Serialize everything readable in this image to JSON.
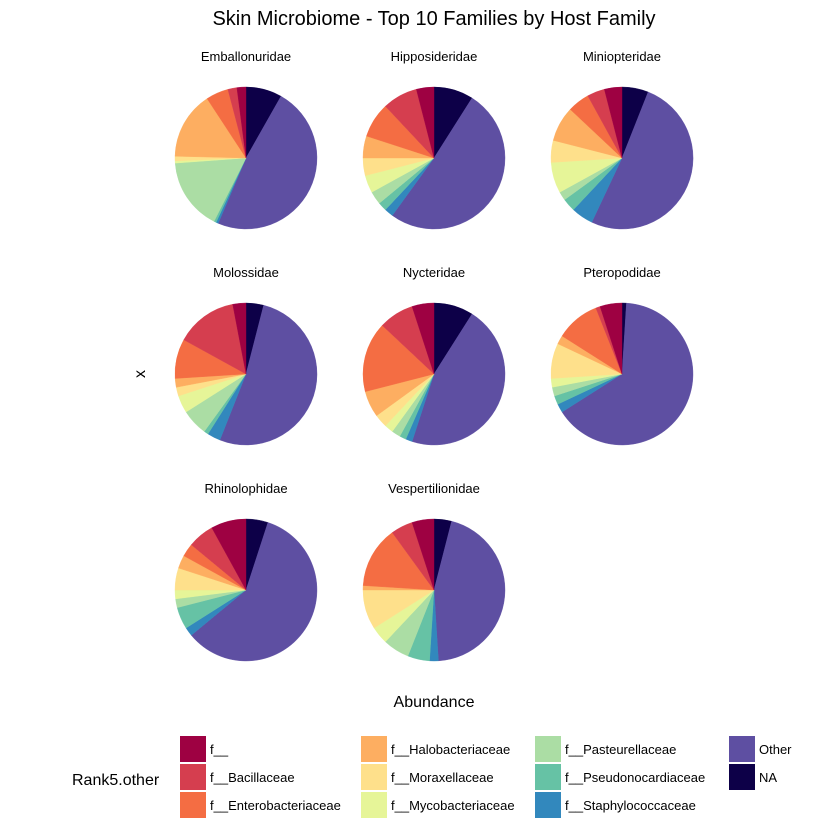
{
  "chart_data": {
    "type": "pie",
    "title": "Skin Microbiome - Top 10 Families by Host Family",
    "xlabel": "Abundance",
    "ylabel": "x",
    "grid": false,
    "legend": {
      "title": "Rank5.other",
      "placement": "bottom",
      "entries": [
        {
          "name": "f__",
          "color": "#9E0142"
        },
        {
          "name": "f__Bacillaceae",
          "color": "#D53E4F"
        },
        {
          "name": "f__Enterobacteriaceae",
          "color": "#F46D43"
        },
        {
          "name": "f__Halobacteriaceae",
          "color": "#FDAE61"
        },
        {
          "name": "f__Moraxellaceae",
          "color": "#FEE08B"
        },
        {
          "name": "f__Mycobacteriaceae",
          "color": "#E6F598"
        },
        {
          "name": "f__Pasteurellaceae",
          "color": "#ABDDA4"
        },
        {
          "name": "f__Pseudonocardiaceae",
          "color": "#66C2A5"
        },
        {
          "name": "f__Staphylococcaceae",
          "color": "#3288BD"
        },
        {
          "name": "Other",
          "color": "#5E4FA2"
        },
        {
          "name": "NA",
          "color": "#0D0048"
        }
      ]
    },
    "categories": [
      "f__",
      "f__Bacillaceae",
      "f__Enterobacteriaceae",
      "f__Halobacteriaceae",
      "f__Moraxellaceae",
      "f__Mycobacteriaceae",
      "f__Pasteurellaceae",
      "f__Pseudonocardiaceae",
      "f__Staphylococcaceae",
      "Other",
      "NA"
    ],
    "facets": [
      {
        "name": "Emballonuridae",
        "values": [
          0.02,
          0.02,
          0.05,
          0.15,
          0.01,
          0.005,
          0.16,
          0.005,
          0.005,
          0.47,
          0.08
        ]
      },
      {
        "name": "Hipposideridae",
        "values": [
          0.04,
          0.08,
          0.08,
          0.05,
          0.04,
          0.04,
          0.03,
          0.02,
          0.02,
          0.51,
          0.09
        ]
      },
      {
        "name": "Miniopteridae",
        "values": [
          0.04,
          0.04,
          0.05,
          0.08,
          0.05,
          0.07,
          0.02,
          0.03,
          0.05,
          0.51,
          0.06
        ]
      },
      {
        "name": "Molossidae",
        "values": [
          0.03,
          0.14,
          0.09,
          0.02,
          0.02,
          0.04,
          0.06,
          0.01,
          0.03,
          0.52,
          0.04
        ]
      },
      {
        "name": "Nycteridae",
        "values": [
          0.05,
          0.08,
          0.16,
          0.06,
          0.03,
          0.02,
          0.02,
          0.015,
          0.015,
          0.46,
          0.09
        ]
      },
      {
        "name": "Pteropodidae",
        "values": [
          0.05,
          0.01,
          0.1,
          0.02,
          0.08,
          0.02,
          0.02,
          0.02,
          0.02,
          0.65,
          0.01
        ]
      },
      {
        "name": "Rhinolophidae",
        "values": [
          0.08,
          0.06,
          0.03,
          0.03,
          0.05,
          0.02,
          0.02,
          0.05,
          0.02,
          0.59,
          0.05
        ]
      },
      {
        "name": "Vespertilionidae",
        "values": [
          0.05,
          0.05,
          0.14,
          0.01,
          0.09,
          0.04,
          0.06,
          0.05,
          0.02,
          0.45,
          0.04
        ]
      }
    ]
  }
}
